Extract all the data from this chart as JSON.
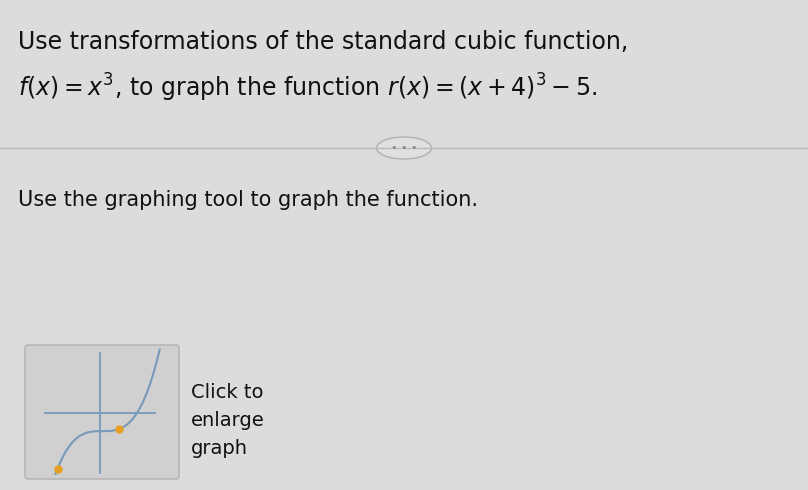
{
  "bg_color": "#dcdcdc",
  "title_line1": "Use transformations of the standard cubic function,",
  "body_text": "Use the graphing tool to graph the function.",
  "click_line1": "Click to",
  "click_line2": "enlarge",
  "click_line3": "graph",
  "graph_box_facecolor": "#d0d0d0",
  "graph_box_edgecolor": "#b0b0b0",
  "sep_line_color": "#b8b8b8",
  "sep_ellipse_face": "#e0e0e0",
  "sep_ellipse_edge": "#b0b0b0",
  "sep_dots_color": "#888888",
  "axis_color": "#7799bb",
  "dot_color": "#e8a020",
  "text_color": "#111111",
  "font_size_title": 17,
  "font_size_body": 15,
  "font_size_click": 14,
  "font_size_sep": 8
}
